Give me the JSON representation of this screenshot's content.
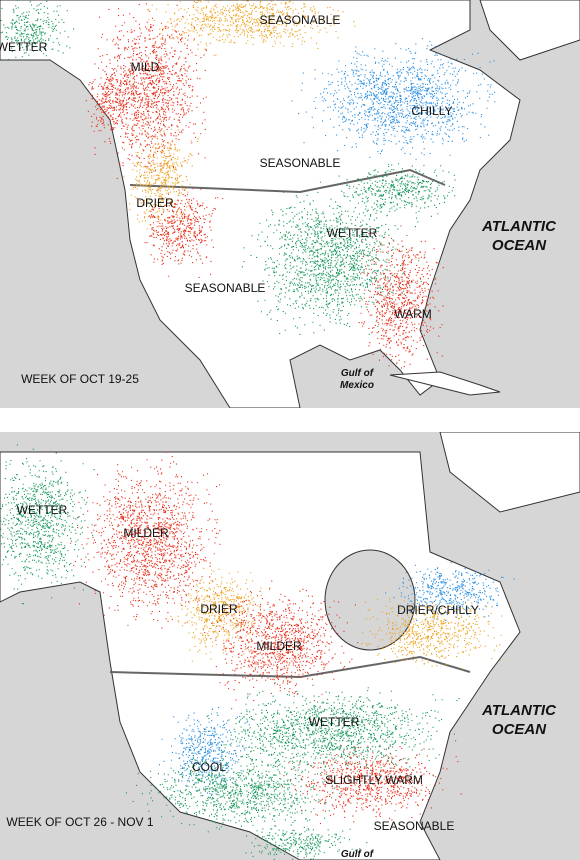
{
  "panels": [
    {
      "regions": [
        {
          "label": "WETTER"
        },
        {
          "label": "MILD"
        },
        {
          "label": "SEASONABLE"
        },
        {
          "label": "CHILLY"
        },
        {
          "label": "SEASONABLE"
        },
        {
          "label": "DRIER"
        },
        {
          "label": "WETTER"
        },
        {
          "label": "SEASONABLE"
        },
        {
          "label": "WARM"
        }
      ],
      "week": "WEEK OF OCT 19-25",
      "ocean": "ATLANTIC OCEAN",
      "gulf": "Gulf of Mexico"
    },
    {
      "regions": [
        {
          "label": "WETTER"
        },
        {
          "label": "MILDER"
        },
        {
          "label": "DRIER"
        },
        {
          "label": "DRIER/CHILLY"
        },
        {
          "label": "MILDER"
        },
        {
          "label": "WETTER"
        },
        {
          "label": "COOL"
        },
        {
          "label": "SLIGHTLY WARM"
        },
        {
          "label": "SEASONABLE"
        }
      ],
      "week": "WEEK OF OCT 26 - NOV 1",
      "ocean": "ATLANTIC OCEAN",
      "gulf": "Gulf of"
    }
  ]
}
